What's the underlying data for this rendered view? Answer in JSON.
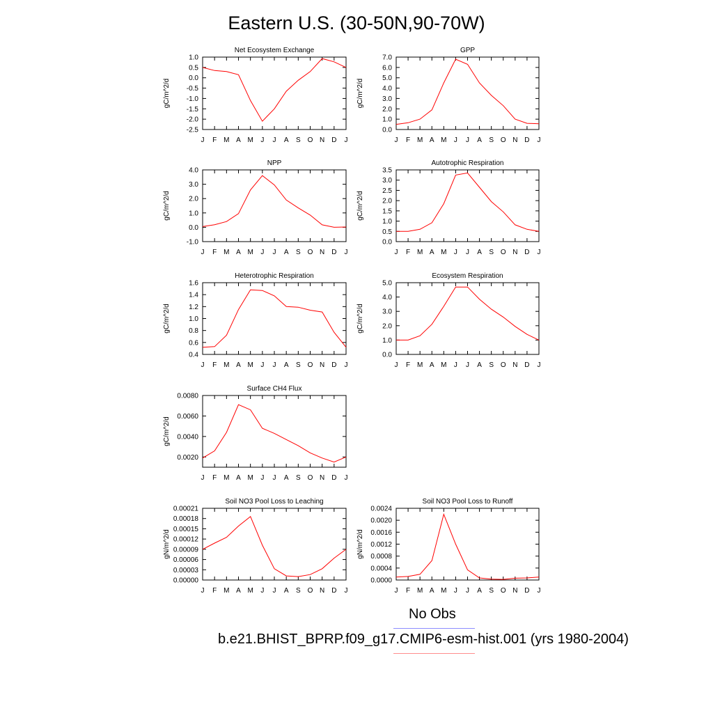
{
  "figure": {
    "title": "Eastern U.S. (30-50N,90-70W)"
  },
  "legend": {
    "obs_label": "No Obs",
    "model_label": "b.e21.BHIST_BPRP.f09_g17.CMIP6-esm-hist.001 (yrs 1980-2004)",
    "obs_color": "#8c8cff",
    "model_color": "#ff8c8c"
  },
  "colors": {
    "series": "#ff0000",
    "axes": "#000000",
    "background": "#ffffff"
  },
  "chart_data": [
    {
      "type": "line",
      "title": "Net Ecosystem Exchange",
      "ylabel": "gC/m^2/d",
      "x": [
        "J",
        "F",
        "M",
        "A",
        "M",
        "J",
        "J",
        "A",
        "S",
        "O",
        "N",
        "D",
        "J"
      ],
      "ylim": [
        -2.5,
        1.0
      ],
      "yticks": [
        "1.0",
        "0.5",
        "0.0",
        "-0.5",
        "-1.0",
        "-1.5",
        "-2.0",
        "-2.5"
      ],
      "ytick_values": [
        1.0,
        0.5,
        0.0,
        -0.5,
        -1.0,
        -1.5,
        -2.0,
        -2.5
      ],
      "series": [
        {
          "values": [
            0.5,
            0.35,
            0.3,
            0.15,
            -1.1,
            -2.1,
            -1.5,
            -0.65,
            -0.12,
            0.3,
            0.93,
            0.77,
            0.5
          ]
        }
      ]
    },
    {
      "type": "line",
      "title": "GPP",
      "ylabel": "gC/m^2/d",
      "x": [
        "J",
        "F",
        "M",
        "A",
        "M",
        "J",
        "J",
        "A",
        "S",
        "O",
        "N",
        "D",
        "J"
      ],
      "ylim": [
        0.0,
        7.0
      ],
      "yticks": [
        "7.0",
        "6.0",
        "5.0",
        "4.0",
        "3.0",
        "2.0",
        "1.0",
        "0.0"
      ],
      "ytick_values": [
        7,
        6,
        5,
        4,
        3,
        2,
        1,
        0
      ],
      "series": [
        {
          "values": [
            0.5,
            0.65,
            1.0,
            1.9,
            4.5,
            6.8,
            6.3,
            4.5,
            3.3,
            2.3,
            1.0,
            0.6,
            0.55
          ]
        }
      ]
    },
    {
      "type": "line",
      "title": "NPP",
      "ylabel": "gC/m^2/d",
      "x": [
        "J",
        "F",
        "M",
        "A",
        "M",
        "J",
        "J",
        "A",
        "S",
        "O",
        "N",
        "D",
        "J"
      ],
      "ylim": [
        -1.0,
        4.0
      ],
      "yticks": [
        "4.0",
        "3.0",
        "2.0",
        "1.0",
        "0.0",
        "-1.0"
      ],
      "ytick_values": [
        4,
        3,
        2,
        1,
        0,
        -1
      ],
      "series": [
        {
          "values": [
            0.05,
            0.18,
            0.4,
            0.95,
            2.6,
            3.6,
            2.95,
            1.9,
            1.35,
            0.85,
            0.17,
            0.0,
            0.02
          ]
        }
      ]
    },
    {
      "type": "line",
      "title": "Autotrophic Respiration",
      "ylabel": "gC/m^2/d",
      "x": [
        "J",
        "F",
        "M",
        "A",
        "M",
        "J",
        "J",
        "A",
        "S",
        "O",
        "N",
        "D",
        "J"
      ],
      "ylim": [
        0.0,
        3.5
      ],
      "yticks": [
        "3.5",
        "3.0",
        "2.5",
        "2.0",
        "1.5",
        "1.0",
        "0.5",
        "0.0"
      ],
      "ytick_values": [
        3.5,
        3.0,
        2.5,
        2.0,
        1.5,
        1.0,
        0.5,
        0.0
      ],
      "series": [
        {
          "values": [
            0.5,
            0.5,
            0.6,
            0.92,
            1.85,
            3.25,
            3.35,
            2.65,
            1.95,
            1.45,
            0.82,
            0.6,
            0.5
          ]
        }
      ]
    },
    {
      "type": "line",
      "title": "Heterotrophic Respiration",
      "ylabel": "gC/m^2/d",
      "x": [
        "J",
        "F",
        "M",
        "A",
        "M",
        "J",
        "J",
        "A",
        "S",
        "O",
        "N",
        "D",
        "J"
      ],
      "ylim": [
        0.4,
        1.6
      ],
      "yticks": [
        "1.6",
        "1.4",
        "1.2",
        "1.0",
        "0.8",
        "0.6",
        "0.4"
      ],
      "ytick_values": [
        1.6,
        1.4,
        1.2,
        1.0,
        0.8,
        0.6,
        0.4
      ],
      "series": [
        {
          "values": [
            0.52,
            0.53,
            0.72,
            1.15,
            1.48,
            1.47,
            1.38,
            1.2,
            1.19,
            1.14,
            1.11,
            0.77,
            0.52
          ]
        }
      ]
    },
    {
      "type": "line",
      "title": "Ecosystem Respiration",
      "ylabel": "gC/m^2/d",
      "x": [
        "J",
        "F",
        "M",
        "A",
        "M",
        "J",
        "J",
        "A",
        "S",
        "O",
        "N",
        "D",
        "J"
      ],
      "ylim": [
        0.0,
        5.0
      ],
      "yticks": [
        "5.0",
        "4.0",
        "3.0",
        "2.0",
        "1.0",
        "0.0"
      ],
      "ytick_values": [
        5,
        4,
        3,
        2,
        1,
        0
      ],
      "series": [
        {
          "values": [
            1.0,
            1.0,
            1.3,
            2.1,
            3.35,
            4.7,
            4.7,
            3.85,
            3.15,
            2.6,
            1.95,
            1.4,
            1.0
          ]
        }
      ]
    },
    {
      "type": "line",
      "title": "Surface CH4 Flux",
      "ylabel": "gC/m^2/d",
      "x": [
        "J",
        "F",
        "M",
        "A",
        "M",
        "J",
        "J",
        "A",
        "S",
        "O",
        "N",
        "D",
        "J"
      ],
      "ylim": [
        0.001,
        0.008
      ],
      "yticks": [
        "0.0080",
        "0.0060",
        "0.0040",
        "0.0020"
      ],
      "ytick_values": [
        0.008,
        0.006,
        0.004,
        0.002
      ],
      "series": [
        {
          "values": [
            0.0019,
            0.0026,
            0.0044,
            0.0071,
            0.0066,
            0.0048,
            0.0043,
            0.0037,
            0.0031,
            0.0024,
            0.0019,
            0.0015,
            0.002
          ]
        }
      ]
    },
    {
      "type": "line",
      "title": "Soil NO3 Pool Loss to Leaching",
      "ylabel": "gN/m^2/d",
      "x": [
        "J",
        "F",
        "M",
        "A",
        "M",
        "J",
        "J",
        "A",
        "S",
        "O",
        "N",
        "D",
        "J"
      ],
      "ylim": [
        0.0,
        0.00021
      ],
      "yticks": [
        "0.00021",
        "0.00018",
        "0.00015",
        "0.00012",
        "0.00009",
        "0.00006",
        "0.00003",
        "0.00000"
      ],
      "ytick_values": [
        0.00021,
        0.00018,
        0.00015,
        0.00012,
        9e-05,
        6e-05,
        3e-05,
        0.0
      ],
      "series": [
        {
          "values": [
            9e-05,
            0.000108,
            0.000125,
            0.000158,
            0.000186,
            0.000102,
            3.3e-05,
            1.2e-05,
            1e-05,
            1.6e-05,
            3.3e-05,
            6.4e-05,
            9e-05
          ]
        }
      ]
    },
    {
      "type": "line",
      "title": "Soil NO3 Pool Loss to Runoff",
      "ylabel": "gN/m^2/d",
      "x": [
        "J",
        "F",
        "M",
        "A",
        "M",
        "J",
        "J",
        "A",
        "S",
        "O",
        "N",
        "D",
        "J"
      ],
      "ylim": [
        0.0,
        0.0024
      ],
      "yticks": [
        "0.0024",
        "0.0020",
        "0.0016",
        "0.0012",
        "0.0008",
        "0.0004",
        "0.0000"
      ],
      "ytick_values": [
        0.0024,
        0.002,
        0.0016,
        0.0012,
        0.0008,
        0.0004,
        0.0
      ],
      "series": [
        {
          "values": [
            0.0001,
            0.00012,
            0.00019,
            0.00065,
            0.0022,
            0.0012,
            0.00034,
            7e-05,
            3e-05,
            2e-05,
            6e-05,
            7e-05,
            0.0001
          ]
        }
      ]
    }
  ]
}
